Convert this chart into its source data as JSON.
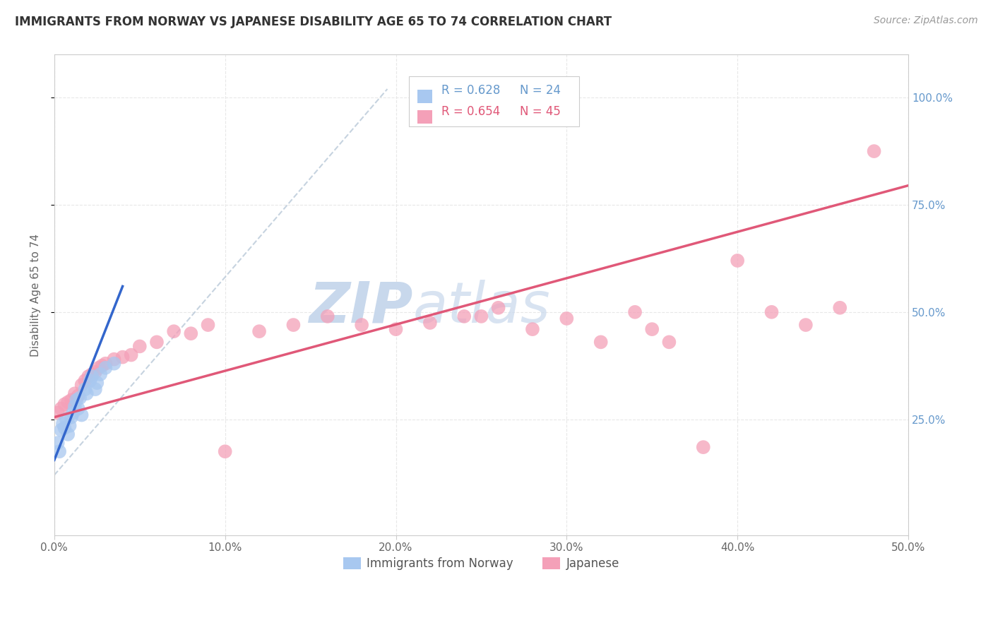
{
  "title": "IMMIGRANTS FROM NORWAY VS JAPANESE DISABILITY AGE 65 TO 74 CORRELATION CHART",
  "source": "Source: ZipAtlas.com",
  "ylabel": "Disability Age 65 to 74",
  "xlim": [
    0.0,
    0.5
  ],
  "ylim": [
    -0.02,
    1.1
  ],
  "xtick_labels": [
    "0.0%",
    "10.0%",
    "20.0%",
    "30.0%",
    "40.0%",
    "50.0%"
  ],
  "xtick_vals": [
    0.0,
    0.1,
    0.2,
    0.3,
    0.4,
    0.5
  ],
  "ytick_labels": [
    "25.0%",
    "50.0%",
    "75.0%",
    "100.0%"
  ],
  "ytick_vals": [
    0.25,
    0.5,
    0.75,
    1.0
  ],
  "legend_blue_label": "Immigrants from Norway",
  "legend_pink_label": "Japanese",
  "r_blue": "R = 0.628",
  "n_blue": "N = 24",
  "r_pink": "R = 0.654",
  "n_pink": "N = 45",
  "blue_scatter_x": [
    0.002,
    0.003,
    0.004,
    0.005,
    0.006,
    0.007,
    0.008,
    0.009,
    0.01,
    0.011,
    0.012,
    0.013,
    0.014,
    0.015,
    0.016,
    0.018,
    0.019,
    0.021,
    0.022,
    0.024,
    0.025,
    0.027,
    0.03,
    0.035
  ],
  "blue_scatter_y": [
    0.195,
    0.175,
    0.225,
    0.24,
    0.23,
    0.25,
    0.215,
    0.235,
    0.255,
    0.265,
    0.28,
    0.295,
    0.275,
    0.3,
    0.26,
    0.32,
    0.31,
    0.34,
    0.35,
    0.32,
    0.335,
    0.355,
    0.37,
    0.38
  ],
  "pink_scatter_x": [
    0.002,
    0.004,
    0.006,
    0.008,
    0.01,
    0.012,
    0.014,
    0.016,
    0.018,
    0.02,
    0.022,
    0.024,
    0.026,
    0.028,
    0.03,
    0.035,
    0.04,
    0.045,
    0.05,
    0.06,
    0.07,
    0.08,
    0.09,
    0.1,
    0.12,
    0.14,
    0.16,
    0.18,
    0.2,
    0.22,
    0.24,
    0.26,
    0.28,
    0.3,
    0.32,
    0.34,
    0.36,
    0.38,
    0.4,
    0.42,
    0.44,
    0.46,
    0.48,
    0.35,
    0.25
  ],
  "pink_scatter_y": [
    0.265,
    0.275,
    0.285,
    0.29,
    0.295,
    0.31,
    0.305,
    0.33,
    0.34,
    0.35,
    0.355,
    0.36,
    0.37,
    0.375,
    0.38,
    0.39,
    0.395,
    0.4,
    0.42,
    0.43,
    0.455,
    0.45,
    0.47,
    0.175,
    0.455,
    0.47,
    0.49,
    0.47,
    0.46,
    0.475,
    0.49,
    0.51,
    0.46,
    0.485,
    0.43,
    0.5,
    0.43,
    0.185,
    0.62,
    0.5,
    0.47,
    0.51,
    0.875,
    0.46,
    0.49
  ],
  "blue_color": "#A8C8F0",
  "pink_color": "#F4A0B8",
  "blue_line_color": "#3366CC",
  "pink_line_color": "#E05878",
  "dashed_line_color": "#B8C8D8",
  "watermark_color": "#C8D8EC",
  "grid_color": "#E8E8E8",
  "background_color": "#FFFFFF",
  "title_color": "#333333",
  "axis_label_color": "#666666",
  "tick_label_color_right": "#6699CC",
  "tick_label_color_bottom": "#666666",
  "blue_line_x": [
    0.0,
    0.04
  ],
  "blue_line_y": [
    0.155,
    0.56
  ],
  "pink_line_x": [
    0.0,
    0.5
  ],
  "pink_line_y": [
    0.255,
    0.795
  ],
  "dash_line_x": [
    0.0,
    0.195
  ],
  "dash_line_y": [
    0.12,
    1.02
  ]
}
